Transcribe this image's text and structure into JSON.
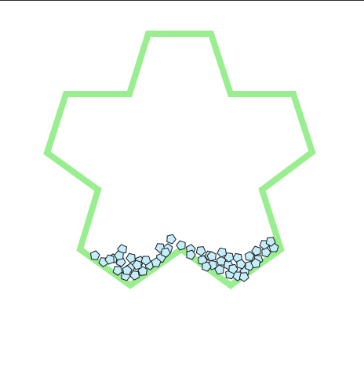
{
  "colors": {
    "background": "#ffffff",
    "top_border": "#2b2b2b",
    "container_stroke": "#99ee90",
    "piece_fill": "#c4eefc",
    "piece_stroke": "#1a1a1a"
  },
  "container": {
    "shape": "star-outline",
    "piece_shape": "pentagon",
    "piece_count": 54
  }
}
